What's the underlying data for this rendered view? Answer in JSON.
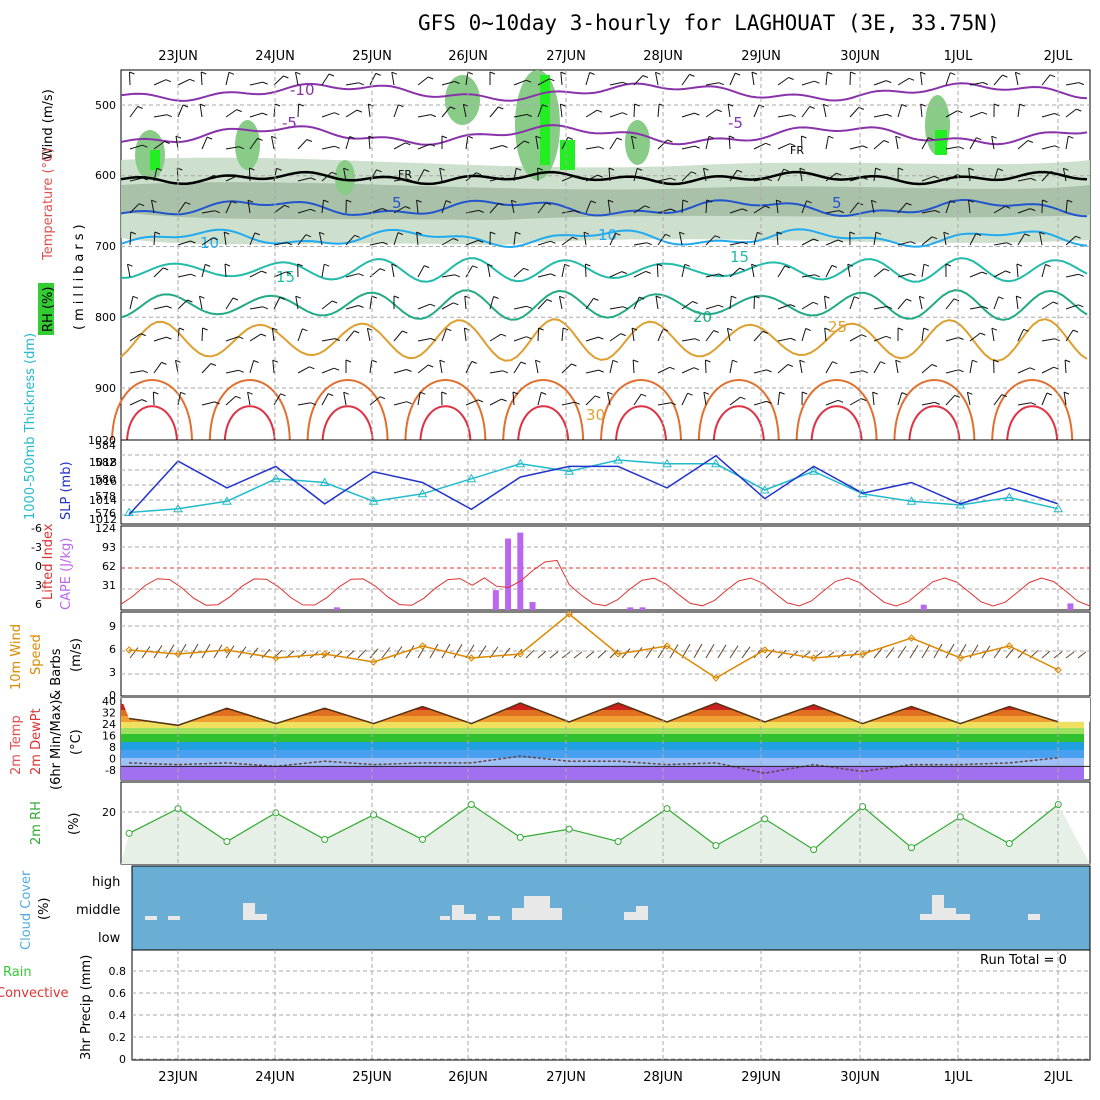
{
  "title": "GFS 0~10day 3-hourly for LAGHOUAT (3E, 33.75N)",
  "dates": [
    "23JUN",
    "24JUN",
    "25JUN",
    "26JUN",
    "27JUN",
    "28JUN",
    "29JUN",
    "30JUN",
    "1JUL",
    "2JUL"
  ],
  "colors": {
    "temperature": "#e05050",
    "wind": "#000000",
    "rh": "#33aa33",
    "thickness": "#22bbcc",
    "slp": "#2233cc",
    "lifted": "#dd3333",
    "cape": "#bb66ee",
    "wind10m": "#dd8800",
    "dewpt": "#33aa33",
    "rh2m": "#33aa33",
    "cloud": "#55aadd",
    "precip": "#33cc33",
    "convective": "#dd3333"
  },
  "panels": {
    "upper": {
      "label_wind": "Wind (m/s)",
      "label_temp": "Temperature (°C)",
      "label_rh": "RH (%)",
      "yaxis_label": "(millibars)",
      "ticks": [
        "500",
        "600",
        "700",
        "800",
        "900",
        "1020"
      ],
      "fr_label": "FR"
    },
    "thickness": {
      "label_thick": "1000-500mb Thickness (dm)",
      "label_slp": "SLP (mb)",
      "left_ticks": [
        "584",
        "582",
        "580",
        "578",
        "576"
      ],
      "right_ticks": [
        "1018",
        "1016",
        "1014",
        "1012"
      ]
    },
    "lifted": {
      "label_li": "Lifted Index",
      "label_cape": "CAPE (J/kg)",
      "left_ticks": [
        "-6",
        "-3",
        "0",
        "3",
        "6"
      ],
      "right_ticks": [
        "124",
        "93",
        "62",
        "31"
      ]
    },
    "wind10m": {
      "label_main": "10m Wind",
      "label_speed": "Speed",
      "label_barbs": "& Barbs",
      "unit": "(m/s)",
      "ticks": [
        "9",
        "6",
        "3",
        "0"
      ]
    },
    "temp2m": {
      "label_temp": "2m Temp",
      "label_dew": "2m DewPt",
      "label_minmax": "(6hr Min/Max)",
      "unit": "(°C)",
      "ticks": [
        "40",
        "32",
        "24",
        "16",
        "8",
        "0",
        "-8"
      ]
    },
    "rh2m": {
      "label": "2m RH",
      "unit": "(%)",
      "ticks": [
        "20"
      ]
    },
    "cloud": {
      "label": "Cloud Cover",
      "unit": "(%)",
      "levels": [
        "high",
        "middle",
        "low"
      ]
    },
    "precip": {
      "label_total": "Total / Rain",
      "label_conv": "Convective",
      "label_main": "3hr Precip (mm)",
      "ticks": [
        "0.8",
        "0.6",
        "0.4",
        "0.2",
        "0"
      ],
      "run_total": "Run Total = 0"
    }
  },
  "chart_data": [
    {
      "type": "line",
      "name": "1000-500mb Thickness",
      "ylabel": "1000-500mb Thickness (dm)",
      "ylim": [
        575,
        585
      ],
      "x": [
        "22JUN12",
        "23JUN00",
        "23JUN12",
        "24JUN00",
        "24JUN12",
        "25JUN00",
        "25JUN12",
        "26JUN00",
        "26JUN12",
        "27JUN00",
        "27JUN12",
        "28JUN00",
        "28JUN12",
        "29JUN00",
        "29JUN12",
        "30JUN00",
        "30JUN12",
        "1JUL00",
        "1JUL12",
        "2JUL00"
      ],
      "values": [
        576.0,
        576.5,
        577.5,
        580.5,
        580.0,
        577.5,
        578.5,
        580.5,
        582.5,
        581.5,
        583.0,
        582.5,
        582.5,
        579.0,
        581.5,
        578.5,
        577.5,
        577.0,
        578.0,
        576.5
      ]
    },
    {
      "type": "line",
      "name": "SLP",
      "ylabel": "SLP (mb)",
      "ylim": [
        1012,
        1019
      ],
      "x": [
        "22JUN12",
        "23JUN00",
        "23JUN12",
        "24JUN00",
        "24JUN12",
        "25JUN00",
        "25JUN12",
        "26JUN00",
        "26JUN12",
        "27JUN00",
        "27JUN12",
        "28JUN00",
        "28JUN12",
        "29JUN00",
        "29JUN12",
        "30JUN00",
        "30JUN12",
        "1JUL00",
        "1JUL12",
        "2JUL00"
      ],
      "values": [
        1012.5,
        1017.5,
        1015.0,
        1017.0,
        1013.5,
        1016.5,
        1015.5,
        1013.0,
        1016.0,
        1017.0,
        1017.0,
        1015.0,
        1018.0,
        1014.0,
        1017.0,
        1014.5,
        1015.5,
        1013.5,
        1015.0,
        1013.5
      ]
    },
    {
      "type": "bar",
      "name": "CAPE",
      "ylabel": "CAPE (J/kg)",
      "ylim": [
        0,
        124
      ],
      "categories": [
        "24JUN15",
        "26JUN06",
        "26JUN09",
        "26JUN12",
        "26JUN15",
        "27JUN15",
        "27JUN18",
        "30JUN15",
        "2JUL03"
      ],
      "values": [
        4,
        30,
        108,
        117,
        12,
        4,
        4,
        8,
        10
      ]
    },
    {
      "type": "line",
      "name": "10m Wind Speed",
      "ylabel": "(m/s)",
      "ylim": [
        0,
        10
      ],
      "x": [
        "22JUN12",
        "23JUN00",
        "23JUN12",
        "24JUN00",
        "24JUN12",
        "25JUN00",
        "25JUN12",
        "26JUN00",
        "26JUN12",
        "27JUN00",
        "27JUN12",
        "28JUN00",
        "28JUN12",
        "29JUN00",
        "29JUN12",
        "30JUN00",
        "30JUN12",
        "1JUL00",
        "1JUL12",
        "2JUL00"
      ],
      "values": [
        5.5,
        5.0,
        5.5,
        4.5,
        5.0,
        4.0,
        6.0,
        4.5,
        5.0,
        10.0,
        5.0,
        6.0,
        2.0,
        5.5,
        4.5,
        5.0,
        7.0,
        4.5,
        6.0,
        3.0
      ]
    },
    {
      "type": "area",
      "name": "2m Temp",
      "ylabel": "(°C)",
      "ylim": [
        -8,
        40
      ],
      "x": [
        "22JUN12",
        "23JUN00",
        "23JUN12",
        "24JUN00",
        "24JUN12",
        "25JUN00",
        "25JUN12",
        "26JUN00",
        "26JUN12",
        "27JUN00",
        "27JUN12",
        "28JUN00",
        "28JUN12",
        "29JUN00",
        "29JUN12",
        "30JUN00",
        "30JUN12",
        "1JUL00",
        "1JUL12",
        "2JUL00"
      ],
      "values": [
        28,
        24,
        34,
        25,
        34,
        25,
        35,
        25,
        37,
        26,
        37,
        26,
        37,
        26,
        36,
        25,
        35,
        25,
        35,
        26
      ]
    },
    {
      "type": "line",
      "name": "2m DewPt",
      "ylabel": "(°C)",
      "ylim": [
        -8,
        40
      ],
      "x": [
        "22JUN12",
        "23JUN00",
        "23JUN12",
        "24JUN00",
        "24JUN12",
        "25JUN00",
        "25JUN12",
        "26JUN00",
        "26JUN12",
        "27JUN00",
        "27JUN12",
        "28JUN00",
        "28JUN12",
        "29JUN00",
        "29JUN12",
        "30JUN00",
        "30JUN12",
        "1JUL00",
        "1JUL12",
        "2JUL00"
      ],
      "values": [
        2,
        1,
        2,
        0,
        3,
        1,
        2,
        2,
        6,
        3,
        3,
        1,
        2,
        -4,
        1,
        -3,
        1,
        1,
        2,
        5
      ]
    },
    {
      "type": "area",
      "name": "2m RH",
      "ylabel": "(%)",
      "ylim": [
        0,
        40
      ],
      "x": [
        "22JUN12",
        "23JUN00",
        "23JUN12",
        "24JUN00",
        "24JUN12",
        "25JUN00",
        "25JUN12",
        "26JUN00",
        "26JUN12",
        "27JUN00",
        "27JUN12",
        "28JUN00",
        "28JUN12",
        "29JUN00",
        "29JUN12",
        "30JUN00",
        "30JUN12",
        "1JUL00",
        "1JUL12",
        "2JUL00"
      ],
      "values": [
        15,
        27,
        11,
        25,
        12,
        24,
        12,
        29,
        13,
        17,
        11,
        27,
        9,
        22,
        7,
        28,
        8,
        23,
        10,
        29
      ]
    }
  ]
}
